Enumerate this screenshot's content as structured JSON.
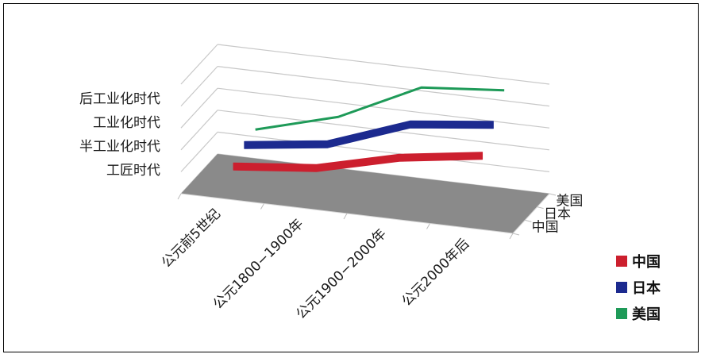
{
  "chart_data": {
    "type": "line",
    "projection": "3d-ribbon",
    "categories": [
      "公元前5世纪",
      "公元1800−1900年",
      "公元1900−2000年",
      "公元2000年后"
    ],
    "y_tick_labels": [
      "工匠时代",
      "半工业化时代",
      "工业化时代",
      "后工业化时代"
    ],
    "y_tick_values": [
      1,
      2,
      3,
      4
    ],
    "ylim": [
      0,
      4.5
    ],
    "series": [
      {
        "name": "中国",
        "color": "#cc1f2e",
        "values": [
          1,
          1.35,
          2.2,
          2.7
        ]
      },
      {
        "name": "日本",
        "color": "#1c2a8f",
        "values": [
          1.4,
          1.85,
          3.1,
          3.5
        ]
      },
      {
        "name": "美国",
        "color": "#1e9a58",
        "values": [
          1.4,
          2.35,
          4.0,
          4.3
        ]
      }
    ],
    "depth_labels": [
      "中国",
      "日本",
      "美国"
    ],
    "legend": {
      "position": "right",
      "entries": [
        "中国",
        "日本",
        "美国"
      ]
    },
    "grid": true,
    "floor_color": "#8a8a8a",
    "title": "",
    "xlabel": "",
    "ylabel": ""
  }
}
